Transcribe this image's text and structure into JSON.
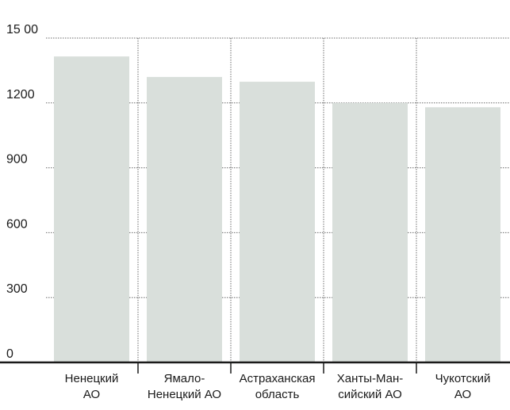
{
  "chart_data": {
    "type": "bar",
    "categories": [
      [
        "Ненецкий",
        "АО"
      ],
      [
        "Ямало-",
        "Ненецкий АО"
      ],
      [
        "Астраханская",
        "область"
      ],
      [
        "Ханты-Ман-",
        "сийский АО"
      ],
      [
        "Чукотский",
        "АО"
      ]
    ],
    "values": [
      1415,
      1320,
      1298,
      1200,
      1180
    ],
    "yticks": [
      0,
      300,
      600,
      900,
      1200,
      1500
    ],
    "ytick_labels": [
      "0",
      "300",
      "600",
      "900",
      "1200",
      "15 00"
    ],
    "ylim": [
      0,
      1500
    ],
    "title": "",
    "xlabel": "",
    "ylabel": "",
    "grid": true,
    "bar_color": "#d9dfdb",
    "grid_color": "#6b6b6b",
    "axis_color": "#1a1a1a"
  }
}
